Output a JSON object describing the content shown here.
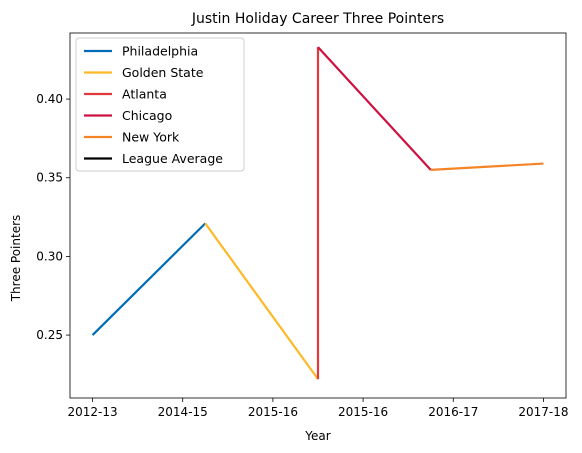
{
  "chart_data": {
    "type": "line",
    "title": "Justin Holiday Career Three Pointers",
    "xlabel": "Year",
    "ylabel": "Three Pointers",
    "x_ticks": [
      "2012-13",
      "2014-15",
      "2015-16",
      "2015-16",
      "2016-17",
      "2017-18"
    ],
    "x_range": [
      -0.25,
      5.25
    ],
    "ylim": [
      0.21,
      0.442
    ],
    "y_ticks": [
      0.25,
      0.3,
      0.35,
      0.4
    ],
    "y_tick_labels": [
      "0.25",
      "0.30",
      "0.35",
      "0.40"
    ],
    "grid": false,
    "legend_position": "top-left",
    "series": [
      {
        "name": "Philadelphia",
        "color": "#006bb6",
        "points": [
          [
            0,
            0.25
          ],
          [
            1.25,
            0.321
          ]
        ]
      },
      {
        "name": "Golden State",
        "color": "#fdb927",
        "points": [
          [
            1.25,
            0.321
          ],
          [
            2.5,
            0.222
          ]
        ]
      },
      {
        "name": "Atlanta",
        "color": "#e03a3e",
        "points": [
          [
            2.5,
            0.222
          ],
          [
            2.5,
            0.433
          ]
        ]
      },
      {
        "name": "Chicago",
        "color": "#ce1141",
        "points": [
          [
            2.5,
            0.433
          ],
          [
            3.75,
            0.355
          ]
        ]
      },
      {
        "name": "New York",
        "color": "#f58426",
        "points": [
          [
            3.75,
            0.355
          ],
          [
            5,
            0.359
          ]
        ]
      },
      {
        "name": "League Average",
        "color": "#000000",
        "points": []
      }
    ]
  }
}
